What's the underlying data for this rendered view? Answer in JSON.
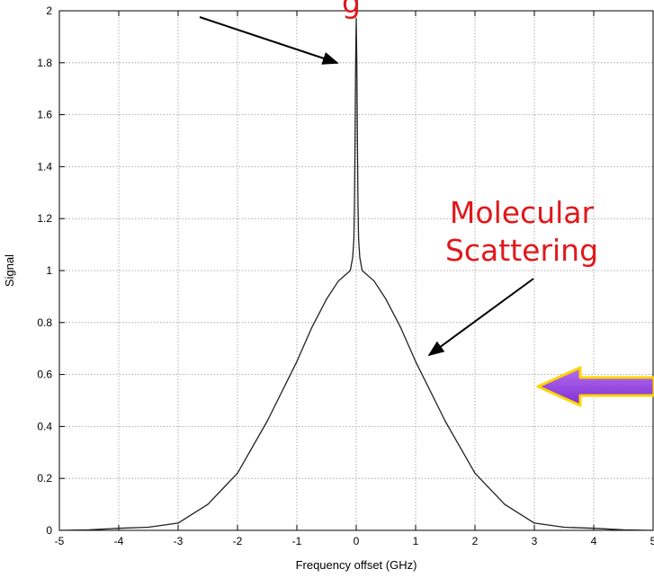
{
  "chart_data": {
    "type": "line",
    "title": "",
    "xlabel": "Frequency offset (GHz)",
    "ylabel": "Signal",
    "xlim": [
      -5,
      5
    ],
    "ylim": [
      0,
      2
    ],
    "grid": true,
    "xticks": [
      "-5",
      "-4",
      "-3",
      "-2",
      "-1",
      "0",
      "1",
      "2",
      "3",
      "4",
      "5"
    ],
    "yticks": [
      "0",
      "0.2",
      "0.4",
      "0.6",
      "0.8",
      "1",
      "1.2",
      "1.4",
      "1.6",
      "1.8",
      "2"
    ],
    "series": [
      {
        "x": [
          -5,
          -4.5,
          -4,
          -3.5,
          -3,
          -2.5,
          -2,
          -1.5,
          -1,
          -0.75,
          -0.5,
          -0.3,
          -0.1,
          -0.06,
          -0.04,
          -0.03,
          -0.02,
          -0.01,
          0,
          0.01,
          0.02,
          0.03,
          0.04,
          0.06,
          0.1,
          0.3,
          0.5,
          0.75,
          1,
          1.5,
          2,
          2.5,
          3,
          3.5,
          4,
          4.5,
          5
        ],
        "y": [
          0.0,
          0.002,
          0.008,
          0.012,
          0.028,
          0.1,
          0.22,
          0.42,
          0.65,
          0.78,
          0.89,
          0.96,
          1.0,
          1.05,
          1.12,
          1.25,
          1.5,
          1.8,
          1.97,
          1.8,
          1.5,
          1.25,
          1.12,
          1.05,
          1.0,
          0.96,
          0.89,
          0.78,
          0.65,
          0.42,
          0.22,
          0.1,
          0.028,
          0.012,
          0.008,
          0.002,
          0.0
        ]
      }
    ],
    "annotations": [
      {
        "label_lines": [
          "Molecular",
          "Scattering"
        ],
        "color": "#e0181b"
      }
    ],
    "top_label_fragment": "g"
  }
}
